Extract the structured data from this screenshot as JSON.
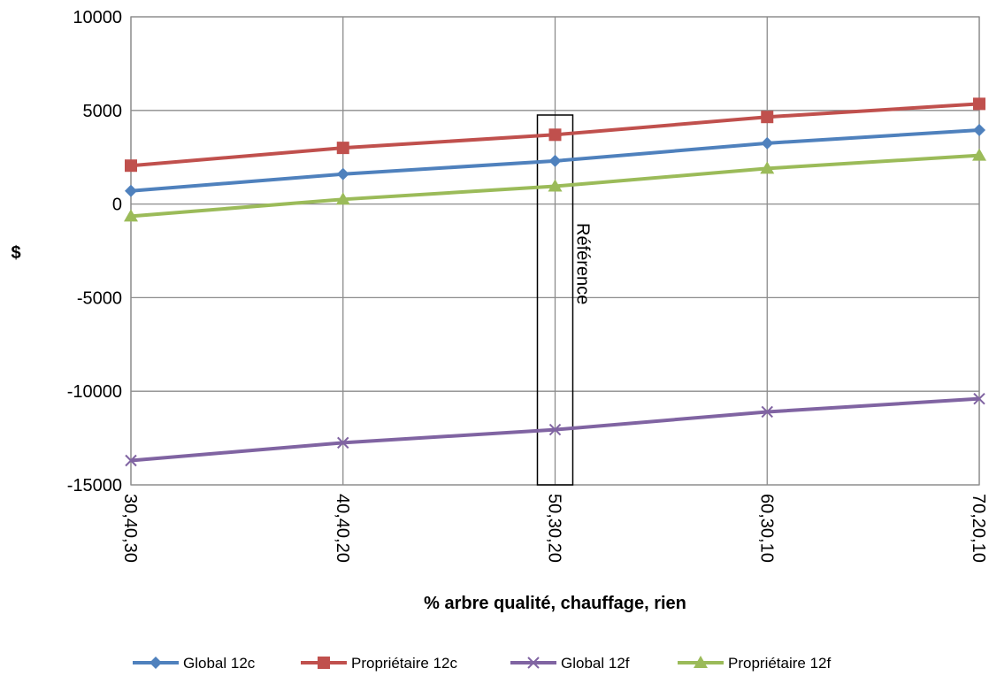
{
  "chart_data": {
    "type": "line",
    "title": "",
    "xlabel": "% arbre qualité, chauffage, rien",
    "ylabel": "$",
    "categories": [
      "30,40,30",
      "40,40,20",
      "50,30,20",
      "60,30,10",
      "70,20,10"
    ],
    "ylim": [
      -15000,
      10000
    ],
    "yticks": [
      10000,
      5000,
      0,
      -5000,
      -10000,
      -15000
    ],
    "grid": true,
    "legend_position": "bottom",
    "series": [
      {
        "name": "Global 12c",
        "color": "#4f81bd",
        "marker": "diamond",
        "values": [
          700,
          1600,
          2300,
          3250,
          3950
        ]
      },
      {
        "name": "Propriétaire 12c",
        "color": "#c0504d",
        "marker": "square",
        "values": [
          2050,
          3000,
          3700,
          4650,
          5350
        ]
      },
      {
        "name": "Global 12f",
        "color": "#8064a2",
        "marker": "x",
        "values": [
          -13700,
          -12750,
          -12050,
          -11100,
          -10400
        ]
      },
      {
        "name": "Propriétaire 12f",
        "color": "#9bbb59",
        "marker": "triangle",
        "values": [
          -650,
          250,
          950,
          1900,
          2600
        ]
      }
    ],
    "annotations": [
      {
        "text": "Référence",
        "category": "50,30,20"
      }
    ]
  }
}
